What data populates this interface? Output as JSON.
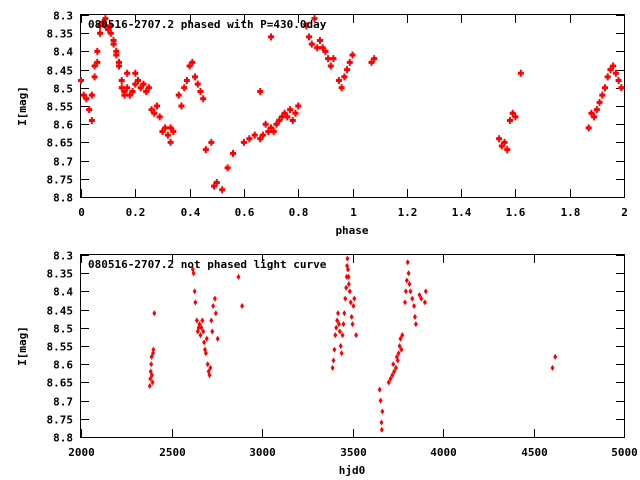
{
  "chart_data": [
    {
      "type": "scatter",
      "title": "080516-2707.2 phased with P=430.0day",
      "xlabel": "phase",
      "ylabel": "I[mag]",
      "xlim": [
        0,
        2
      ],
      "ylim": [
        8.8,
        8.3
      ],
      "y_inverted": true,
      "xticks": [
        0,
        0.2,
        0.4,
        0.6,
        0.8,
        1,
        1.2,
        1.4,
        1.6,
        1.8,
        2
      ],
      "xtick_labels": [
        "0",
        "0.2",
        "0.4",
        "0.6",
        "0.8",
        "1",
        "1.2",
        "1.4",
        "1.6",
        "1.8",
        "2"
      ],
      "yticks": [
        8.3,
        8.35,
        8.4,
        8.45,
        8.5,
        8.55,
        8.6,
        8.65,
        8.7,
        8.75,
        8.8
      ],
      "ytick_labels": [
        "8.3",
        "8.35",
        "8.4",
        "8.45",
        "8.5",
        "8.55",
        "8.6",
        "8.65",
        "8.7",
        "8.75",
        "8.8"
      ],
      "grid": false,
      "marker_color": "#ff0000",
      "points": [
        [
          0.0,
          8.48
        ],
        [
          0.01,
          8.52
        ],
        [
          0.02,
          8.53
        ],
        [
          0.03,
          8.56
        ],
        [
          0.04,
          8.59
        ],
        [
          0.04,
          8.52
        ],
        [
          0.05,
          8.47
        ],
        [
          0.05,
          8.44
        ],
        [
          0.06,
          8.43
        ],
        [
          0.06,
          8.4
        ],
        [
          0.07,
          8.35
        ],
        [
          0.07,
          8.33
        ],
        [
          0.08,
          8.32
        ],
        [
          0.09,
          8.33
        ],
        [
          0.09,
          8.31
        ],
        [
          0.1,
          8.34
        ],
        [
          0.11,
          8.33
        ],
        [
          0.11,
          8.35
        ],
        [
          0.12,
          8.37
        ],
        [
          0.12,
          8.38
        ],
        [
          0.13,
          8.4
        ],
        [
          0.13,
          8.41
        ],
        [
          0.14,
          8.44
        ],
        [
          0.14,
          8.43
        ],
        [
          0.15,
          8.48
        ],
        [
          0.15,
          8.5
        ],
        [
          0.16,
          8.52
        ],
        [
          0.16,
          8.51
        ],
        [
          0.17,
          8.5
        ],
        [
          0.17,
          8.46
        ],
        [
          0.18,
          8.52
        ],
        [
          0.19,
          8.51
        ],
        [
          0.2,
          8.49
        ],
        [
          0.2,
          8.46
        ],
        [
          0.21,
          8.48
        ],
        [
          0.22,
          8.5
        ],
        [
          0.23,
          8.49
        ],
        [
          0.24,
          8.51
        ],
        [
          0.25,
          8.5
        ],
        [
          0.26,
          8.56
        ],
        [
          0.27,
          8.57
        ],
        [
          0.28,
          8.55
        ],
        [
          0.29,
          8.58
        ],
        [
          0.3,
          8.62
        ],
        [
          0.31,
          8.61
        ],
        [
          0.32,
          8.63
        ],
        [
          0.33,
          8.65
        ],
        [
          0.33,
          8.61
        ],
        [
          0.34,
          8.62
        ],
        [
          0.36,
          8.52
        ],
        [
          0.37,
          8.55
        ],
        [
          0.38,
          8.5
        ],
        [
          0.39,
          8.48
        ],
        [
          0.4,
          8.44
        ],
        [
          0.41,
          8.43
        ],
        [
          0.42,
          8.47
        ],
        [
          0.43,
          8.49
        ],
        [
          0.44,
          8.51
        ],
        [
          0.45,
          8.53
        ],
        [
          0.46,
          8.67
        ],
        [
          0.48,
          8.65
        ],
        [
          0.49,
          8.77
        ],
        [
          0.5,
          8.76
        ],
        [
          0.52,
          8.78
        ],
        [
          0.54,
          8.72
        ],
        [
          0.56,
          8.68
        ],
        [
          0.6,
          8.65
        ],
        [
          0.62,
          8.64
        ],
        [
          0.64,
          8.63
        ],
        [
          0.66,
          8.51
        ],
        [
          0.66,
          8.64
        ],
        [
          0.67,
          8.63
        ],
        [
          0.68,
          8.6
        ],
        [
          0.69,
          8.62
        ],
        [
          0.7,
          8.61
        ],
        [
          0.7,
          8.36
        ],
        [
          0.71,
          8.62
        ],
        [
          0.72,
          8.6
        ],
        [
          0.73,
          8.59
        ],
        [
          0.74,
          8.58
        ],
        [
          0.75,
          8.57
        ],
        [
          0.76,
          8.58
        ],
        [
          0.77,
          8.56
        ],
        [
          0.78,
          8.59
        ],
        [
          0.79,
          8.57
        ],
        [
          0.8,
          8.55
        ],
        [
          0.83,
          8.33
        ],
        [
          0.84,
          8.36
        ],
        [
          0.85,
          8.38
        ],
        [
          0.86,
          8.31
        ],
        [
          0.87,
          8.39
        ],
        [
          0.88,
          8.37
        ],
        [
          0.89,
          8.39
        ],
        [
          0.9,
          8.4
        ],
        [
          0.91,
          8.42
        ],
        [
          0.92,
          8.44
        ],
        [
          0.93,
          8.42
        ],
        [
          0.95,
          8.48
        ],
        [
          0.96,
          8.5
        ],
        [
          0.97,
          8.47
        ],
        [
          0.98,
          8.45
        ],
        [
          0.99,
          8.43
        ],
        [
          1.0,
          8.41
        ],
        [
          1.07,
          8.43
        ],
        [
          1.08,
          8.42
        ],
        [
          1.54,
          8.64
        ],
        [
          1.55,
          8.66
        ],
        [
          1.56,
          8.65
        ],
        [
          1.57,
          8.67
        ],
        [
          1.58,
          8.59
        ],
        [
          1.59,
          8.57
        ],
        [
          1.6,
          8.58
        ],
        [
          1.62,
          8.46
        ],
        [
          1.87,
          8.61
        ],
        [
          1.88,
          8.57
        ],
        [
          1.89,
          8.58
        ],
        [
          1.9,
          8.56
        ],
        [
          1.91,
          8.54
        ],
        [
          1.92,
          8.52
        ],
        [
          1.93,
          8.5
        ],
        [
          1.94,
          8.47
        ],
        [
          1.95,
          8.45
        ],
        [
          1.96,
          8.44
        ],
        [
          1.97,
          8.46
        ],
        [
          1.98,
          8.48
        ],
        [
          1.99,
          8.5
        ]
      ]
    },
    {
      "type": "scatter",
      "title": "080516-2707.2 not phased light curve",
      "xlabel": "hjd0",
      "ylabel": "I[mag]",
      "xlim": [
        2000,
        5000
      ],
      "ylim": [
        8.8,
        8.3
      ],
      "y_inverted": true,
      "xticks": [
        2000,
        2500,
        3000,
        3500,
        4000,
        4500,
        5000
      ],
      "xtick_labels": [
        "2000",
        "2500",
        "3000",
        "3500",
        "4000",
        "4500",
        "5000"
      ],
      "yticks": [
        8.3,
        8.35,
        8.4,
        8.45,
        8.5,
        8.55,
        8.6,
        8.65,
        8.7,
        8.75,
        8.8
      ],
      "ytick_labels": [
        "8.3",
        "8.35",
        "8.4",
        "8.45",
        "8.5",
        "8.55",
        "8.6",
        "8.65",
        "8.7",
        "8.75",
        "8.8"
      ],
      "grid": false,
      "marker_color": "#ff0000",
      "points": [
        [
          2380,
          8.66
        ],
        [
          2383,
          8.64
        ],
        [
          2385,
          8.62
        ],
        [
          2388,
          8.6
        ],
        [
          2390,
          8.58
        ],
        [
          2392,
          8.63
        ],
        [
          2395,
          8.65
        ],
        [
          2398,
          8.57
        ],
        [
          2400,
          8.56
        ],
        [
          2405,
          8.46
        ],
        [
          2618,
          8.34
        ],
        [
          2622,
          8.35
        ],
        [
          2628,
          8.4
        ],
        [
          2632,
          8.43
        ],
        [
          2640,
          8.48
        ],
        [
          2645,
          8.51
        ],
        [
          2650,
          8.5
        ],
        [
          2655,
          8.49
        ],
        [
          2660,
          8.52
        ],
        [
          2665,
          8.5
        ],
        [
          2670,
          8.48
        ],
        [
          2675,
          8.51
        ],
        [
          2680,
          8.54
        ],
        [
          2685,
          8.56
        ],
        [
          2690,
          8.57
        ],
        [
          2695,
          8.53
        ],
        [
          2700,
          8.6
        ],
        [
          2705,
          8.62
        ],
        [
          2710,
          8.63
        ],
        [
          2715,
          8.61
        ],
        [
          2720,
          8.48
        ],
        [
          2725,
          8.51
        ],
        [
          2730,
          8.44
        ],
        [
          2740,
          8.42
        ],
        [
          2745,
          8.46
        ],
        [
          2755,
          8.53
        ],
        [
          2870,
          8.36
        ],
        [
          2890,
          8.44
        ],
        [
          3390,
          8.61
        ],
        [
          3395,
          8.59
        ],
        [
          3400,
          8.56
        ],
        [
          3405,
          8.52
        ],
        [
          3410,
          8.5
        ],
        [
          3415,
          8.48
        ],
        [
          3420,
          8.46
        ],
        [
          3425,
          8.49
        ],
        [
          3430,
          8.51
        ],
        [
          3435,
          8.55
        ],
        [
          3440,
          8.57
        ],
        [
          3445,
          8.52
        ],
        [
          3450,
          8.49
        ],
        [
          3455,
          8.46
        ],
        [
          3460,
          8.42
        ],
        [
          3465,
          8.39
        ],
        [
          3468,
          8.36
        ],
        [
          3470,
          8.33
        ],
        [
          3472,
          8.31
        ],
        [
          3475,
          8.34
        ],
        [
          3478,
          8.36
        ],
        [
          3480,
          8.38
        ],
        [
          3485,
          8.4
        ],
        [
          3490,
          8.43
        ],
        [
          3495,
          8.47
        ],
        [
          3500,
          8.49
        ],
        [
          3505,
          8.44
        ],
        [
          3510,
          8.42
        ],
        [
          3520,
          8.52
        ],
        [
          3650,
          8.67
        ],
        [
          3655,
          8.7
        ],
        [
          3660,
          8.76
        ],
        [
          3662,
          8.78
        ],
        [
          3665,
          8.73
        ],
        [
          3700,
          8.65
        ],
        [
          3710,
          8.64
        ],
        [
          3720,
          8.63
        ],
        [
          3725,
          8.6
        ],
        [
          3730,
          8.62
        ],
        [
          3740,
          8.61
        ],
        [
          3745,
          8.58
        ],
        [
          3750,
          8.59
        ],
        [
          3755,
          8.57
        ],
        [
          3760,
          8.55
        ],
        [
          3765,
          8.53
        ],
        [
          3770,
          8.56
        ],
        [
          3775,
          8.52
        ],
        [
          3790,
          8.43
        ],
        [
          3795,
          8.4
        ],
        [
          3800,
          8.37
        ],
        [
          3805,
          8.32
        ],
        [
          3810,
          8.35
        ],
        [
          3815,
          8.38
        ],
        [
          3820,
          8.4
        ],
        [
          3830,
          8.42
        ],
        [
          3840,
          8.44
        ],
        [
          3845,
          8.47
        ],
        [
          3850,
          8.49
        ],
        [
          3870,
          8.41
        ],
        [
          3880,
          8.42
        ],
        [
          3900,
          8.43
        ],
        [
          3905,
          8.4
        ],
        [
          4605,
          8.61
        ],
        [
          4620,
          8.58
        ]
      ]
    }
  ]
}
